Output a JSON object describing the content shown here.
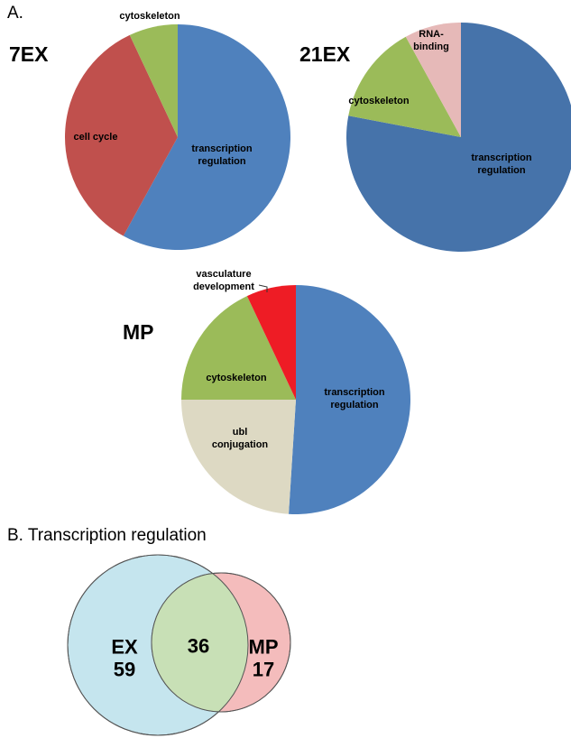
{
  "panel_label": "A.",
  "chart_data": [
    {
      "type": "pie",
      "title": "7EX",
      "categories": [
        "transcription regulation",
        "cell cycle",
        "cytoskeleton"
      ],
      "values": [
        58,
        35,
        7
      ],
      "colors": [
        "#4f81bd",
        "#c0504d",
        "#9bbb59"
      ]
    },
    {
      "type": "pie",
      "title": "21EX",
      "categories": [
        "transcription regulation",
        "cytoskeleton",
        "RNA-binding"
      ],
      "values": [
        78,
        14,
        8
      ],
      "colors": [
        "#4673aa",
        "#9bbb59",
        "#e6b9b8"
      ]
    },
    {
      "type": "pie",
      "title": "MP",
      "categories": [
        "transcription regulation",
        "ubl conjugation",
        "cytoskeleton",
        "vasculature development"
      ],
      "values": [
        51,
        24,
        18,
        7
      ],
      "colors": [
        "#4f81bd",
        "#ddd9c3",
        "#9bbb59",
        "#ee1c25"
      ]
    },
    {
      "type": "venn",
      "title": "B. Transcription regulation",
      "sets": [
        {
          "name": "EX",
          "value": 59,
          "color": "#c5e5ee"
        },
        {
          "name": "MP",
          "value": 17,
          "color": "#f4bcbc"
        }
      ],
      "intersection": 36,
      "intersection_color": "#c8e0b6"
    }
  ]
}
